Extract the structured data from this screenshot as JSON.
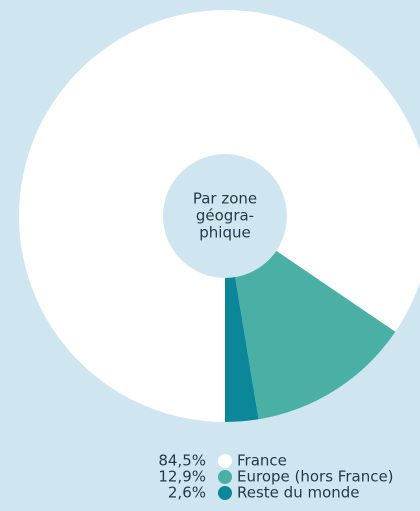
{
  "chart_data": {
    "type": "donut",
    "center_label": [
      "Par zone",
      "géogra-",
      "phique"
    ],
    "categories": [
      "France",
      "Europe (hors France)",
      "Reste du monde"
    ],
    "values": [
      84.5,
      12.9,
      2.6
    ],
    "value_labels": [
      "84,5%",
      "12,9%",
      "2,6%"
    ],
    "colors": [
      "#ffffff",
      "#4aafa5",
      "#0b8799"
    ]
  }
}
